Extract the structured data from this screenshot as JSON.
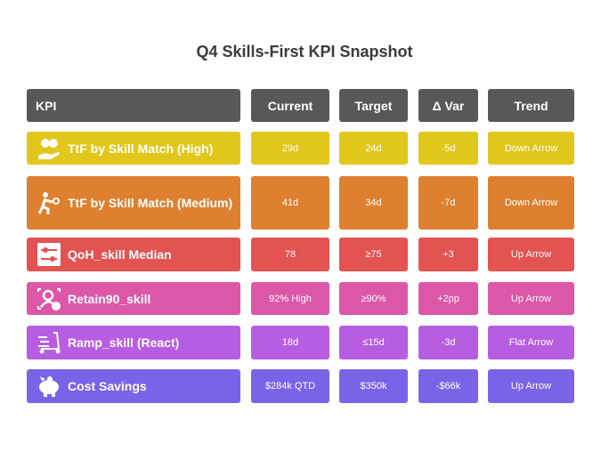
{
  "title": "Q4 Skills-First KPI Snapshot",
  "headers": [
    "KPI",
    "Current",
    "Target",
    "Δ Var",
    "Trend"
  ],
  "rows": [
    {
      "kpi": "TtF by Skill Match (High)",
      "current": "29d",
      "target": "24d",
      "var": "-5d",
      "trend": "Down Arrow",
      "color": "#e1c71b",
      "icon": "hand-coins-icon"
    },
    {
      "kpi": "TtF by Skill Match (Medium)",
      "current": "41d",
      "target": "34d",
      "var": "-7d",
      "trend": "Down Arrow",
      "color": "#dd802f",
      "icon": "person-throwing-icon"
    },
    {
      "kpi": "QoH_skill Median",
      "current": "78",
      "target": "≥75",
      "var": "+3",
      "trend": "Up Arrow",
      "color": "#e25352",
      "icon": "sliders-icon"
    },
    {
      "kpi": "Retain90_skill",
      "current": "92% High",
      "target": "≥90%",
      "var": "+2pp",
      "trend": "Up Arrow",
      "color": "#dc57a8",
      "icon": "user-check-icon"
    },
    {
      "kpi": "Ramp_skill (React)",
      "current": "18d",
      "target": "≤15d",
      "var": "-3d",
      "trend": "Flat Arrow",
      "color": "#b75de1",
      "icon": "scooter-icon"
    },
    {
      "kpi": "Cost Savings",
      "current": "$284k QTD",
      "target": "$350k",
      "var": "-$66k",
      "trend": "Up Arrow",
      "color": "#7b63e8",
      "icon": "piggy-bank-icon"
    }
  ]
}
